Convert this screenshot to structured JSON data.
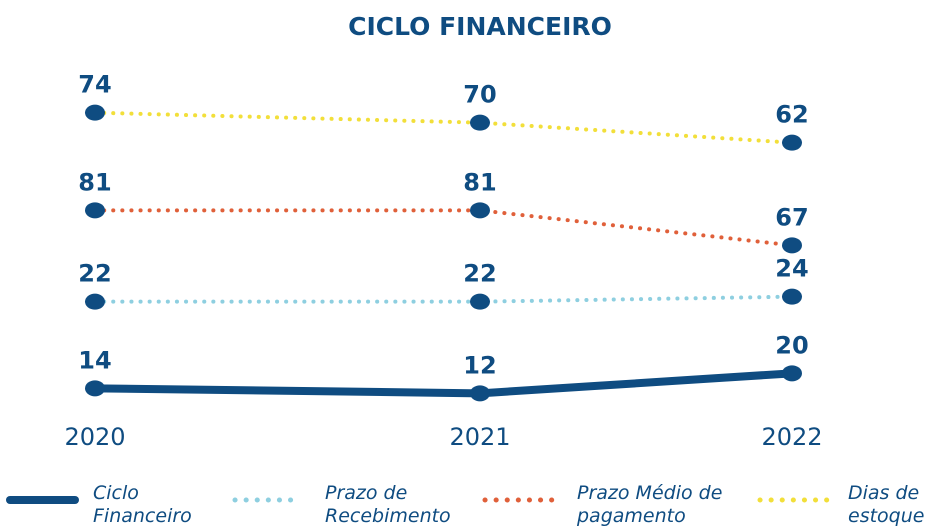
{
  "chart_data": {
    "type": "line",
    "title": "CICLO FINANCEIRO",
    "categories": [
      "2020",
      "2021",
      "2022"
    ],
    "series": [
      {
        "name": "Ciclo Financeiro",
        "color": "#0f4c81",
        "values": [
          14,
          12,
          20
        ]
      },
      {
        "name": "Prazo de Recebimento",
        "color": "#8ecfe0",
        "values": [
          22,
          22,
          24
        ]
      },
      {
        "name": "Prazo Médio de pagamento",
        "color": "#e0603a",
        "values": [
          81,
          81,
          67
        ]
      },
      {
        "name": "Dias de estoque",
        "color": "#f2df3a",
        "values": [
          74,
          70,
          62
        ]
      }
    ]
  }
}
